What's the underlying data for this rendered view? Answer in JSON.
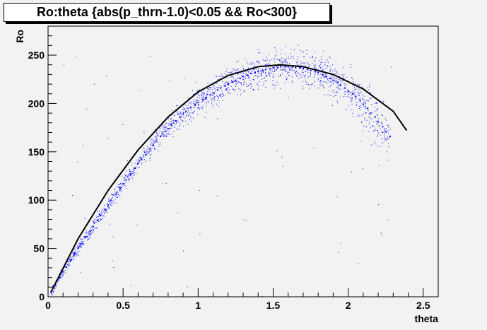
{
  "title": "Ro:theta {abs(p_thrn-1.0)<0.05 && Ro<300}",
  "chart_data": {
    "type": "scatter",
    "xlabel": "theta",
    "ylabel": "Ro",
    "xlim": [
      0,
      2.6
    ],
    "ylim": [
      0,
      280
    ],
    "xticks": [
      0,
      0.5,
      1,
      1.5,
      2,
      2.5
    ],
    "xtick_labels": [
      "0",
      "0.5",
      "1",
      "1.5",
      "2",
      "2.5"
    ],
    "yticks": [
      0,
      50,
      100,
      150,
      200,
      250
    ],
    "ytick_labels": [
      "0",
      "50",
      "100",
      "150",
      "200",
      "250"
    ],
    "grid": false,
    "series": [
      {
        "kind": "points",
        "color": "#0000ff",
        "x": [
          0.02,
          0.05,
          0.08,
          0.1,
          0.12,
          0.15,
          0.18,
          0.2,
          0.22,
          0.25,
          0.28,
          0.3,
          0.33,
          0.35,
          0.38,
          0.4,
          0.42,
          0.45,
          0.48,
          0.5,
          0.52,
          0.55,
          0.58,
          0.6,
          0.62,
          0.65,
          0.68,
          0.7,
          0.72,
          0.75,
          0.78,
          0.8,
          0.82,
          0.85,
          0.88,
          0.9,
          0.92,
          0.95,
          0.98,
          1.0,
          1.03,
          1.05,
          1.08,
          1.1,
          1.13,
          1.15,
          1.18,
          1.2,
          1.23,
          1.25,
          1.28,
          1.3,
          1.33,
          1.35,
          1.38,
          1.4,
          1.43,
          1.45,
          1.48,
          1.5,
          1.53,
          1.55,
          1.58,
          1.6,
          1.63,
          1.65,
          1.68,
          1.7,
          1.73,
          1.75,
          1.78,
          1.8,
          1.83,
          1.85,
          1.88,
          1.9,
          1.93,
          1.95,
          1.98,
          2.0,
          2.03,
          2.05,
          2.08,
          2.1,
          2.13,
          2.15,
          2.18,
          2.2,
          2.23,
          2.25,
          2.28
        ],
        "y": [
          5,
          12,
          20,
          26,
          31,
          38,
          45,
          50,
          55,
          62,
          68,
          73,
          79,
          84,
          90,
          95,
          100,
          106,
          112,
          117,
          121,
          127,
          133,
          138,
          142,
          147,
          153,
          157,
          161,
          166,
          171,
          174,
          178,
          182,
          186,
          189,
          192,
          196,
          199,
          201,
          204,
          206,
          209,
          211,
          214,
          216,
          218,
          220,
          222,
          224,
          226,
          228,
          229,
          231,
          232,
          233,
          234,
          235,
          236,
          237,
          237,
          238,
          238,
          238,
          238,
          237,
          237,
          236,
          235,
          234,
          233,
          232,
          230,
          228,
          226,
          224,
          222,
          219,
          216,
          213,
          210,
          207,
          203,
          199,
          195,
          190,
          186,
          181,
          176,
          171,
          166
        ]
      },
      {
        "kind": "line",
        "color": "#000000",
        "x": [
          0.02,
          0.2,
          0.4,
          0.6,
          0.8,
          1.0,
          1.2,
          1.4,
          1.55,
          1.7,
          1.9,
          2.1,
          2.3,
          2.39
        ],
        "y": [
          5,
          60,
          110,
          152,
          186,
          212,
          229,
          238,
          240,
          238,
          230,
          215,
          192,
          172
        ]
      }
    ]
  }
}
